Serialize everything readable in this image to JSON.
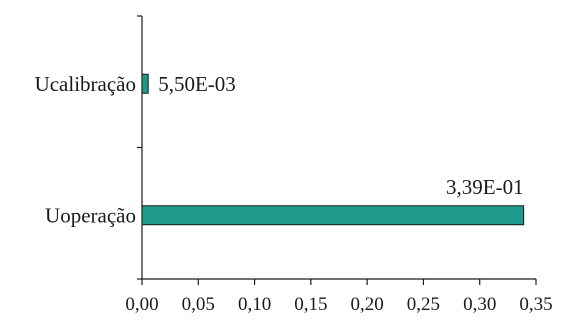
{
  "chart_data": {
    "type": "bar",
    "orientation": "horizontal",
    "title": "",
    "xlabel": "",
    "ylabel": "",
    "categories": [
      "Ucalibração",
      "Uoperação"
    ],
    "values": [
      0.0055,
      0.339
    ],
    "data_labels": [
      "5,50E-03",
      "3,39E-01"
    ],
    "xlim": [
      0,
      0.35
    ],
    "x_ticks": [
      0,
      0.05,
      0.1,
      0.15,
      0.2,
      0.25,
      0.3,
      0.35
    ],
    "x_tick_labels": [
      "0,00",
      "0,05",
      "0,10",
      "0,15",
      "0,20",
      "0,25",
      "0,30",
      "0,35"
    ],
    "grid": false,
    "legend": "none",
    "bar_color": "#1f9a8a"
  }
}
